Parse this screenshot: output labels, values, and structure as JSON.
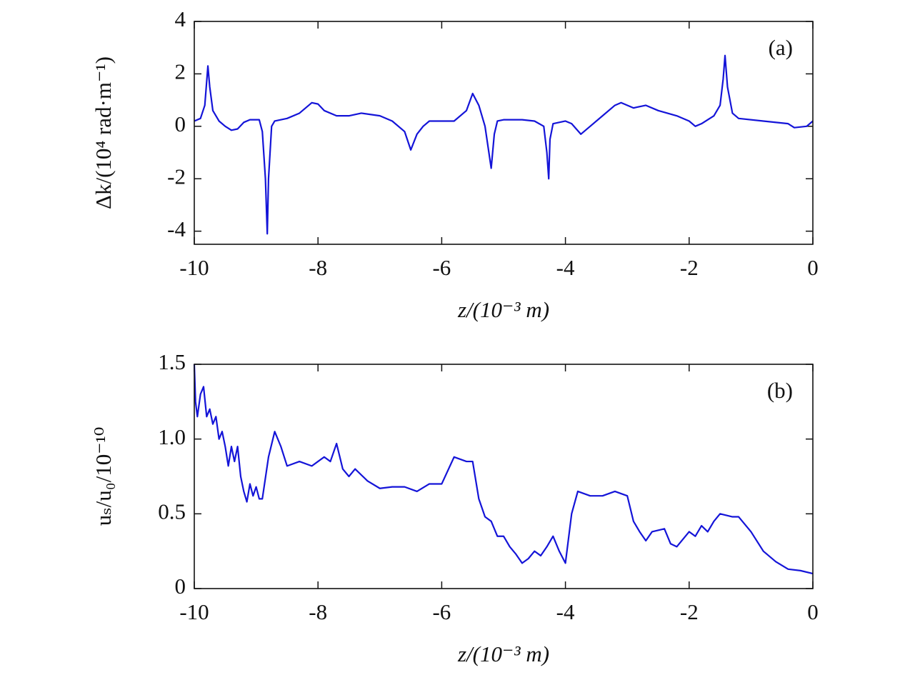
{
  "chart_data": [
    {
      "type": "line",
      "annotation": "(a)",
      "x_label": "z/(10⁻³ m)",
      "y_label": "Δk/(10⁴ rad·m⁻¹)",
      "x": [
        -10,
        -9.9,
        -9.83,
        -9.78,
        -9.75,
        -9.7,
        -9.6,
        -9.5,
        -9.4,
        -9.3,
        -9.2,
        -9.1,
        -9.0,
        -8.95,
        -8.9,
        -8.85,
        -8.82,
        -8.8,
        -8.75,
        -8.7,
        -8.5,
        -8.3,
        -8.1,
        -8.0,
        -7.9,
        -7.7,
        -7.5,
        -7.3,
        -7.0,
        -6.8,
        -6.6,
        -6.5,
        -6.4,
        -6.3,
        -6.2,
        -6.0,
        -5.8,
        -5.6,
        -5.5,
        -5.4,
        -5.3,
        -5.25,
        -5.2,
        -5.15,
        -5.1,
        -5.0,
        -4.7,
        -4.5,
        -4.35,
        -4.3,
        -4.27,
        -4.25,
        -4.2,
        -4.0,
        -3.9,
        -3.75,
        -3.6,
        -3.4,
        -3.2,
        -3.1,
        -2.9,
        -2.7,
        -2.5,
        -2.2,
        -2.0,
        -1.9,
        -1.8,
        -1.6,
        -1.5,
        -1.45,
        -1.42,
        -1.38,
        -1.3,
        -1.2,
        -0.8,
        -0.4,
        -0.3,
        -0.1,
        0
      ],
      "series": [
        {
          "color": "#1414d8",
          "values": [
            0.2,
            0.3,
            0.8,
            2.3,
            1.5,
            0.6,
            0.2,
            0,
            -0.15,
            -0.1,
            0.15,
            0.25,
            0.25,
            0.25,
            -0.2,
            -2,
            -4.1,
            -2,
            0,
            0.2,
            0.3,
            0.5,
            0.9,
            0.85,
            0.6,
            0.4,
            0.4,
            0.5,
            0.4,
            0.2,
            -0.2,
            -0.9,
            -0.3,
            0,
            0.2,
            0.2,
            0.2,
            0.6,
            1.25,
            0.8,
            0,
            -0.8,
            -1.6,
            -0.3,
            0.2,
            0.25,
            0.25,
            0.2,
            0,
            -1,
            -2,
            -0.5,
            0.1,
            0.2,
            0.1,
            -0.3,
            0,
            0.4,
            0.8,
            0.9,
            0.7,
            0.8,
            0.6,
            0.4,
            0.2,
            0,
            0.1,
            0.4,
            0.8,
            1.8,
            2.7,
            1.5,
            0.5,
            0.3,
            0.2,
            0.1,
            -0.05,
            0,
            0.2
          ]
        }
      ],
      "xlim": [
        -10,
        0
      ],
      "xticks": [
        -10,
        -8,
        -6,
        -4,
        -2,
        0
      ],
      "ylim": [
        -4.5,
        4
      ],
      "yticks": [
        -4,
        -2,
        0,
        2,
        4
      ]
    },
    {
      "type": "line",
      "annotation": "(b)",
      "x_label": "z/(10⁻³ m)",
      "y_label": "uₛ/u₀/10⁻¹⁰",
      "x": [
        -10,
        -9.98,
        -9.95,
        -9.9,
        -9.85,
        -9.8,
        -9.75,
        -9.7,
        -9.65,
        -9.6,
        -9.55,
        -9.5,
        -9.45,
        -9.4,
        -9.35,
        -9.3,
        -9.25,
        -9.2,
        -9.15,
        -9.1,
        -9.05,
        -9.0,
        -8.95,
        -8.9,
        -8.8,
        -8.7,
        -8.6,
        -8.5,
        -8.3,
        -8.1,
        -8.0,
        -7.9,
        -7.8,
        -7.7,
        -7.6,
        -7.5,
        -7.4,
        -7.2,
        -7.0,
        -6.8,
        -6.6,
        -6.4,
        -6.2,
        -6.0,
        -5.8,
        -5.6,
        -5.5,
        -5.4,
        -5.3,
        -5.2,
        -5.1,
        -5.0,
        -4.9,
        -4.8,
        -4.7,
        -4.6,
        -4.5,
        -4.4,
        -4.3,
        -4.2,
        -4.1,
        -4.0,
        -3.9,
        -3.8,
        -3.6,
        -3.4,
        -3.2,
        -3.0,
        -2.9,
        -2.8,
        -2.7,
        -2.6,
        -2.4,
        -2.3,
        -2.2,
        -2.0,
        -1.9,
        -1.8,
        -1.7,
        -1.6,
        -1.5,
        -1.3,
        -1.2,
        -1.0,
        -0.8,
        -0.6,
        -0.4,
        -0.2,
        0
      ],
      "series": [
        {
          "color": "#1414d8",
          "values": [
            1.5,
            1.25,
            1.15,
            1.3,
            1.35,
            1.15,
            1.2,
            1.1,
            1.15,
            1.0,
            1.05,
            0.95,
            0.82,
            0.95,
            0.85,
            0.95,
            0.75,
            0.65,
            0.58,
            0.7,
            0.62,
            0.68,
            0.6,
            0.6,
            0.88,
            1.05,
            0.95,
            0.82,
            0.85,
            0.82,
            0.85,
            0.88,
            0.85,
            0.97,
            0.8,
            0.75,
            0.8,
            0.72,
            0.67,
            0.68,
            0.68,
            0.65,
            0.7,
            0.7,
            0.88,
            0.85,
            0.85,
            0.6,
            0.48,
            0.45,
            0.35,
            0.35,
            0.28,
            0.23,
            0.17,
            0.2,
            0.25,
            0.22,
            0.28,
            0.35,
            0.25,
            0.17,
            0.5,
            0.65,
            0.62,
            0.62,
            0.65,
            0.62,
            0.45,
            0.38,
            0.32,
            0.38,
            0.4,
            0.3,
            0.28,
            0.38,
            0.35,
            0.42,
            0.38,
            0.45,
            0.5,
            0.48,
            0.48,
            0.38,
            0.25,
            0.18,
            0.13,
            0.12,
            0.1
          ]
        }
      ],
      "xlim": [
        -10,
        0
      ],
      "xticks": [
        -10,
        -8,
        -6,
        -4,
        -2,
        0
      ],
      "ylim": [
        0,
        1.5
      ],
      "yticks": [
        0,
        0.5,
        {
          "value": 1.0,
          "label": "1.0"
        },
        1.5
      ]
    }
  ]
}
